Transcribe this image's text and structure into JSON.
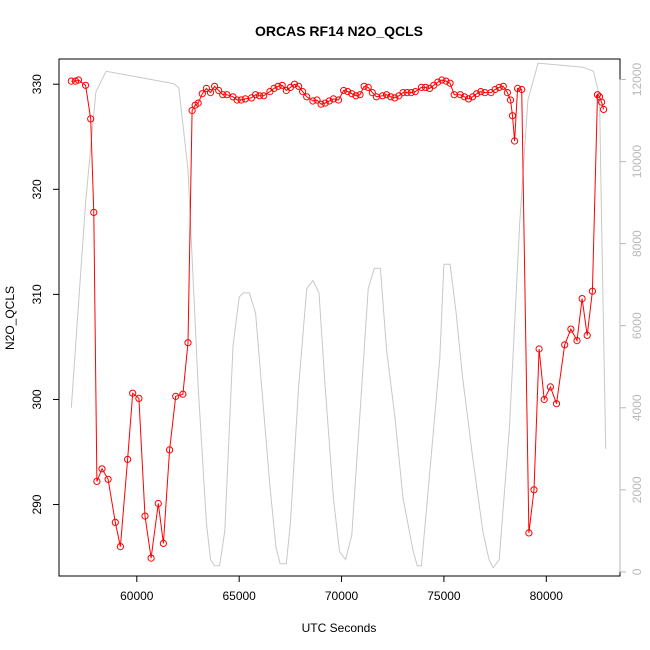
{
  "chart_data": {
    "type": "line",
    "title": "ORCAS RF14 N2O_QCLS",
    "xlabel": "UTC Seconds",
    "ylabel": "N2O_QCLS",
    "xlim": [
      56200,
      83600
    ],
    "ylim": [
      283.2,
      332.4
    ],
    "ylim_right": [
      -100,
      12500
    ],
    "x_ticks": [
      60000,
      65000,
      70000,
      75000,
      80000
    ],
    "y_ticks": [
      290,
      300,
      310,
      320,
      330
    ],
    "y2_ticks": [
      0,
      2000,
      4000,
      6000,
      8000,
      10000,
      12000
    ],
    "grid": false,
    "series": [
      {
        "role": "N2O_QCLS",
        "color": "#ff0000",
        "marker": "open-circle",
        "points": [
          [
            56800,
            330.3
          ],
          [
            57000,
            330.3
          ],
          [
            57150,
            330.4
          ],
          [
            57500,
            329.9
          ],
          [
            57750,
            326.7
          ],
          [
            57900,
            317.8
          ],
          [
            58050,
            292.2
          ],
          [
            58300,
            293.4
          ],
          [
            58600,
            292.4
          ],
          [
            58950,
            288.3
          ],
          [
            59200,
            286.0
          ],
          [
            59550,
            294.3
          ],
          [
            59800,
            300.6
          ],
          [
            60100,
            300.1
          ],
          [
            60400,
            288.9
          ],
          [
            60700,
            284.9
          ],
          [
            61050,
            290.1
          ],
          [
            61300,
            286.3
          ],
          [
            61600,
            295.2
          ],
          [
            61900,
            300.3
          ],
          [
            62250,
            300.5
          ],
          [
            62500,
            305.4
          ],
          [
            62700,
            327.5
          ],
          [
            62850,
            328.0
          ],
          [
            63000,
            328.2
          ],
          [
            63200,
            329.1
          ],
          [
            63400,
            329.6
          ],
          [
            63600,
            329.2
          ],
          [
            63800,
            329.8
          ],
          [
            64000,
            329.4
          ],
          [
            64200,
            329.0
          ],
          [
            64400,
            329.0
          ],
          [
            64700,
            328.8
          ],
          [
            64900,
            328.5
          ],
          [
            65100,
            328.5
          ],
          [
            65300,
            328.6
          ],
          [
            65600,
            328.7
          ],
          [
            65800,
            329.0
          ],
          [
            66000,
            328.9
          ],
          [
            66200,
            328.9
          ],
          [
            66500,
            329.3
          ],
          [
            66700,
            329.6
          ],
          [
            66900,
            329.8
          ],
          [
            67100,
            329.9
          ],
          [
            67300,
            329.4
          ],
          [
            67500,
            329.7
          ],
          [
            67700,
            330.0
          ],
          [
            67900,
            329.8
          ],
          [
            68100,
            329.3
          ],
          [
            68300,
            328.8
          ],
          [
            68600,
            328.4
          ],
          [
            68800,
            328.5
          ],
          [
            69000,
            328.1
          ],
          [
            69200,
            328.2
          ],
          [
            69400,
            328.4
          ],
          [
            69600,
            328.6
          ],
          [
            69850,
            328.5
          ],
          [
            70100,
            329.4
          ],
          [
            70300,
            329.3
          ],
          [
            70500,
            329.1
          ],
          [
            70700,
            328.9
          ],
          [
            70900,
            329.0
          ],
          [
            71100,
            329.8
          ],
          [
            71300,
            329.7
          ],
          [
            71500,
            329.2
          ],
          [
            71700,
            328.8
          ],
          [
            72000,
            328.9
          ],
          [
            72200,
            329.0
          ],
          [
            72400,
            328.8
          ],
          [
            72600,
            328.7
          ],
          [
            72800,
            328.9
          ],
          [
            73000,
            329.2
          ],
          [
            73200,
            329.2
          ],
          [
            73400,
            329.2
          ],
          [
            73600,
            329.3
          ],
          [
            73900,
            329.7
          ],
          [
            74100,
            329.7
          ],
          [
            74300,
            329.6
          ],
          [
            74500,
            329.9
          ],
          [
            74700,
            330.2
          ],
          [
            74900,
            330.4
          ],
          [
            75100,
            330.3
          ],
          [
            75300,
            330.1
          ],
          [
            75500,
            329.0
          ],
          [
            75800,
            329.0
          ],
          [
            76000,
            328.8
          ],
          [
            76200,
            328.6
          ],
          [
            76400,
            328.8
          ],
          [
            76600,
            329.1
          ],
          [
            76800,
            329.3
          ],
          [
            77000,
            329.2
          ],
          [
            77300,
            329.2
          ],
          [
            77500,
            329.5
          ],
          [
            77700,
            329.7
          ],
          [
            77900,
            329.8
          ],
          [
            78100,
            329.2
          ],
          [
            78250,
            328.5
          ],
          [
            78350,
            327.0
          ],
          [
            78450,
            324.6
          ],
          [
            78600,
            329.6
          ],
          [
            78800,
            329.5
          ],
          [
            79150,
            287.3
          ],
          [
            79400,
            291.4
          ],
          [
            79650,
            304.8
          ],
          [
            79900,
            300.0
          ],
          [
            80200,
            301.2
          ],
          [
            80500,
            299.6
          ],
          [
            80900,
            305.2
          ],
          [
            81200,
            306.7
          ],
          [
            81500,
            305.6
          ],
          [
            81750,
            309.6
          ],
          [
            82000,
            306.1
          ],
          [
            82250,
            310.3
          ],
          [
            82500,
            329.0
          ],
          [
            82600,
            328.8
          ],
          [
            82700,
            328.3
          ],
          [
            82800,
            327.6
          ]
        ]
      },
      {
        "role": "altitude (right axis)",
        "color": "#c8c8c8",
        "marker": "none",
        "points": [
          [
            56800,
            4000
          ],
          [
            57500,
            9000
          ],
          [
            58000,
            11700
          ],
          [
            58500,
            12200
          ],
          [
            61800,
            11900
          ],
          [
            62050,
            11800
          ],
          [
            62500,
            9800
          ],
          [
            63000,
            4500
          ],
          [
            63400,
            1200
          ],
          [
            63600,
            300
          ],
          [
            63800,
            150
          ],
          [
            64050,
            150
          ],
          [
            64300,
            1000
          ],
          [
            64700,
            5500
          ],
          [
            65000,
            6700
          ],
          [
            65200,
            6800
          ],
          [
            65500,
            6800
          ],
          [
            65800,
            6300
          ],
          [
            66100,
            4500
          ],
          [
            66500,
            2100
          ],
          [
            66800,
            600
          ],
          [
            67000,
            200
          ],
          [
            67300,
            200
          ],
          [
            67500,
            1200
          ],
          [
            67900,
            4500
          ],
          [
            68300,
            6900
          ],
          [
            68600,
            7100
          ],
          [
            68900,
            6800
          ],
          [
            69200,
            4500
          ],
          [
            69600,
            1800
          ],
          [
            69900,
            500
          ],
          [
            70200,
            300
          ],
          [
            70500,
            900
          ],
          [
            71000,
            4600
          ],
          [
            71300,
            6900
          ],
          [
            71600,
            7400
          ],
          [
            71900,
            7400
          ],
          [
            72200,
            5400
          ],
          [
            72600,
            3800
          ],
          [
            73000,
            1800
          ],
          [
            73500,
            500
          ],
          [
            73700,
            150
          ],
          [
            73900,
            150
          ],
          [
            74200,
            1800
          ],
          [
            74800,
            5200
          ],
          [
            75000,
            7500
          ],
          [
            75300,
            7500
          ],
          [
            75600,
            6300
          ],
          [
            75900,
            4800
          ],
          [
            76400,
            2800
          ],
          [
            76900,
            1000
          ],
          [
            77200,
            300
          ],
          [
            77400,
            100
          ],
          [
            77700,
            300
          ],
          [
            78200,
            3500
          ],
          [
            78700,
            8500
          ],
          [
            79100,
            11500
          ],
          [
            79600,
            12400
          ],
          [
            81800,
            12300
          ],
          [
            82300,
            12200
          ],
          [
            82600,
            11600
          ],
          [
            82700,
            8500
          ],
          [
            82900,
            3000
          ]
        ]
      }
    ]
  }
}
